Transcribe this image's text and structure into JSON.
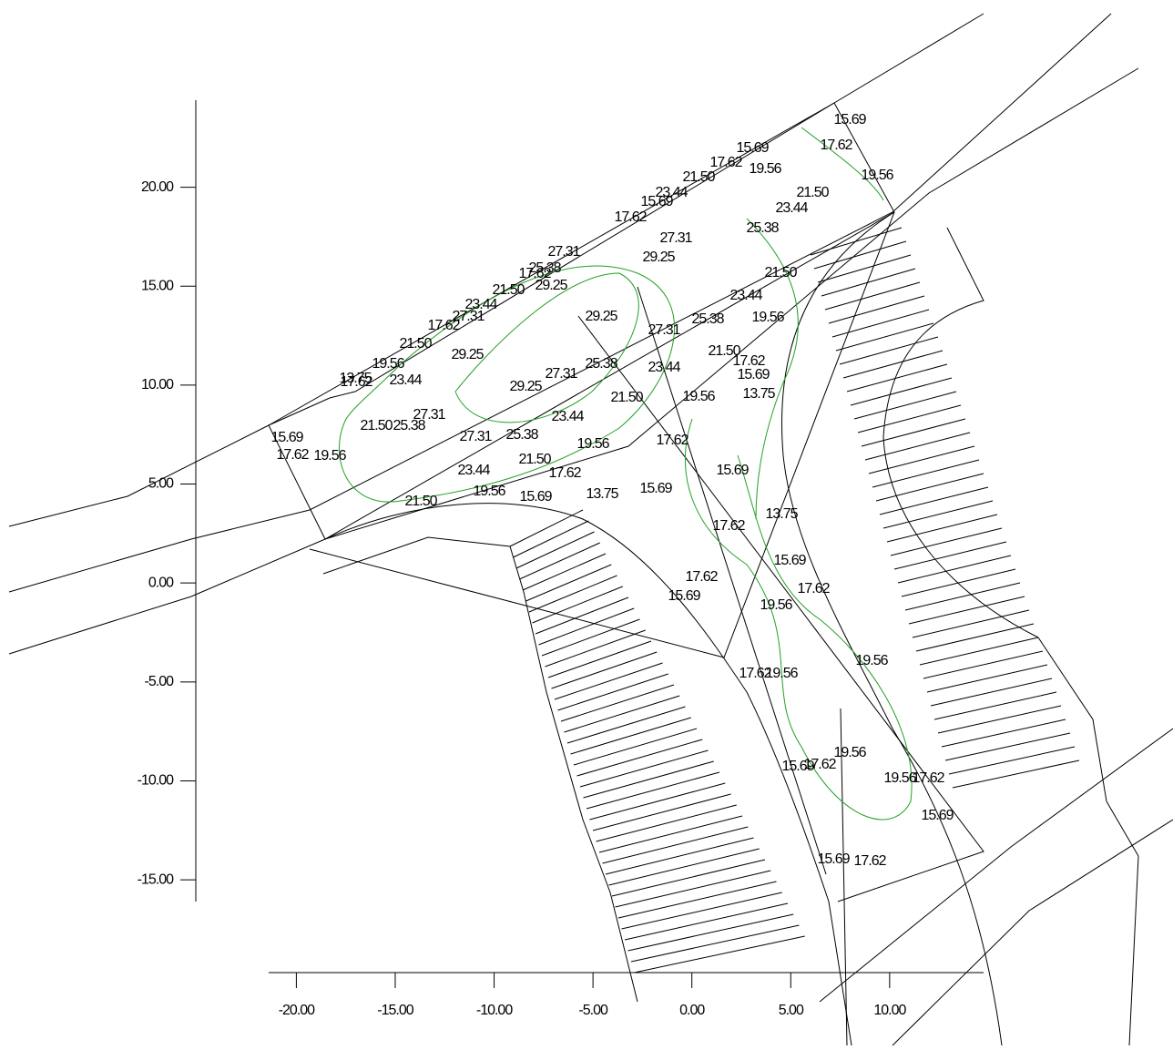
{
  "chart_data": {
    "type": "contour",
    "xlim": [
      -21.4,
      14.75
    ],
    "ylim": [
      -16.1,
      24.4
    ],
    "xticks": [
      {
        "value": -20,
        "label": "-20.00"
      },
      {
        "value": -15,
        "label": "-15.00"
      },
      {
        "value": -10,
        "label": "-10.00"
      },
      {
        "value": -5,
        "label": "-5.00"
      },
      {
        "value": 0,
        "label": "0.00"
      },
      {
        "value": 5,
        "label": "5.00"
      },
      {
        "value": 10,
        "label": "10.00"
      }
    ],
    "yticks": [
      {
        "value": -15,
        "label": "-15.00"
      },
      {
        "value": -10,
        "label": "-10.00"
      },
      {
        "value": -5,
        "label": "-5.00"
      },
      {
        "value": 0,
        "label": "0.00"
      },
      {
        "value": 5,
        "label": "5.00"
      },
      {
        "value": 10,
        "label": "10.00"
      },
      {
        "value": 15,
        "label": "15.00"
      },
      {
        "value": 20,
        "label": "20.00"
      }
    ],
    "contour_labels": [
      "15.69",
      "17.62",
      "15.69",
      "17.62",
      "19.56",
      "19.56",
      "21.50",
      "21.50",
      "23.44",
      "15.69",
      "23.44",
      "17.62",
      "25.38",
      "27.31",
      "29.25",
      "27.31",
      "25.38",
      "17.62",
      "29.25",
      "21.50",
      "21.50",
      "23.44",
      "23.44",
      "27.31",
      "17.62",
      "29.25",
      "27.31",
      "25.38",
      "19.56",
      "21.50",
      "29.25",
      "21.50",
      "17.62",
      "19.56",
      "15.69",
      "25.38",
      "27.31",
      "23.44",
      "17.62",
      "13.75",
      "23.44",
      "13.75",
      "29.25",
      "19.56",
      "21.50",
      "27.31",
      "23.44",
      "21.50",
      "25.38",
      "27.31",
      "25.38",
      "15.69",
      "17.62",
      "19.56",
      "17.62",
      "19.56",
      "21.50",
      "17.62",
      "23.44",
      "15.69",
      "15.69",
      "13.75",
      "15.69",
      "19.56",
      "21.50",
      "13.75",
      "17.62",
      "15.69",
      "17.62",
      "17.62",
      "15.69",
      "19.56",
      "19.56",
      "17.62",
      "19.56",
      "19.56",
      "15.69",
      "17.62",
      "19.56",
      "17.62",
      "15.69",
      "15.69",
      "17.62"
    ],
    "contour_color": "#22a022"
  }
}
